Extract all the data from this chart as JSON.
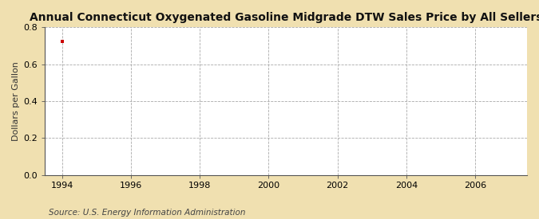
{
  "title": "Annual Connecticut Oxygenated Gasoline Midgrade DTW Sales Price by All Sellers",
  "ylabel": "Dollars per Gallon",
  "source": "Source: U.S. Energy Information Administration",
  "figure_bg_color": "#f0e0b0",
  "axes_bg_color": "#ffffff",
  "data_x": [
    1994
  ],
  "data_y": [
    0.724
  ],
  "marker_color": "#cc0000",
  "marker_style": "s",
  "marker_size": 3,
  "xlim": [
    1993.5,
    2007.5
  ],
  "ylim": [
    0.0,
    0.8
  ],
  "xticks": [
    1994,
    1996,
    1998,
    2000,
    2002,
    2004,
    2006
  ],
  "yticks": [
    0.0,
    0.2,
    0.4,
    0.6,
    0.8
  ],
  "grid_color": "#aaaaaa",
  "grid_linestyle": "--",
  "grid_linewidth": 0.6,
  "title_fontsize": 10,
  "label_fontsize": 8,
  "tick_fontsize": 8,
  "source_fontsize": 7.5,
  "source_color": "#444444"
}
